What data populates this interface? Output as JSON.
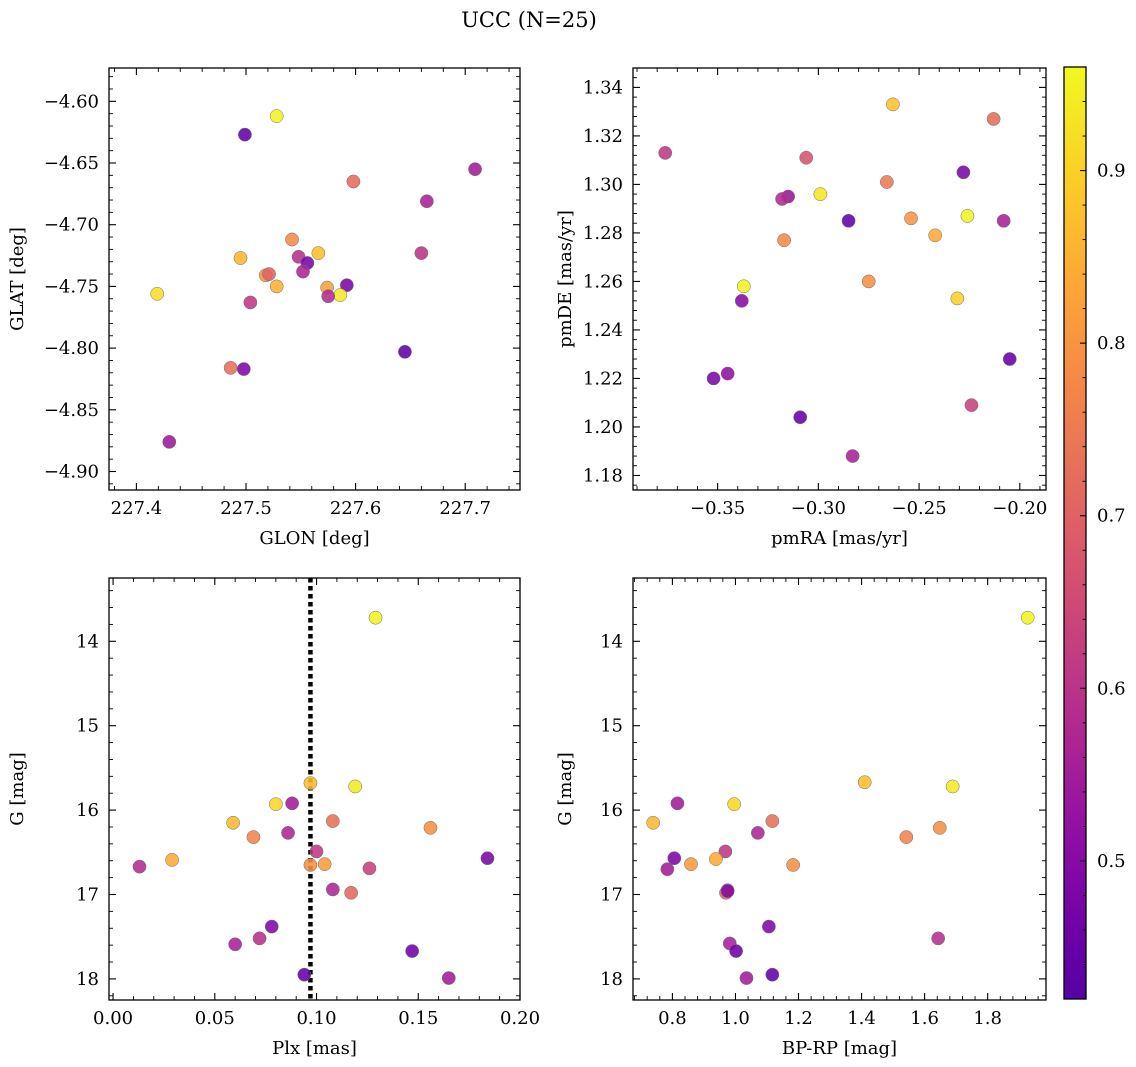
{
  "figure": {
    "title": "UCC (N=25)"
  },
  "colorbar": {
    "range": [
      0.42,
      0.96
    ],
    "ticks": [
      0.5,
      0.6,
      0.7,
      0.8,
      0.9
    ],
    "ticklabels": [
      "0.5",
      "0.6",
      "0.7",
      "0.8",
      "0.9"
    ],
    "colormap": "plasma"
  },
  "chart_data": [
    {
      "type": "scatter",
      "id": "glon-glat",
      "xlabel": "GLON [deg]",
      "ylabel": "GLAT [deg]",
      "xlim": [
        227.375,
        227.75
      ],
      "ylim": [
        -4.915,
        -4.573
      ],
      "y_inverted": false,
      "xticks": [
        227.4,
        227.5,
        227.6,
        227.7
      ],
      "xticklabels": [
        "227.4",
        "227.5",
        "227.6",
        "227.7"
      ],
      "yticks": [
        -4.9,
        -4.85,
        -4.8,
        -4.75,
        -4.7,
        -4.65,
        -4.6
      ],
      "yticklabels": [
        "−4.90",
        "−4.85",
        "−4.80",
        "−4.75",
        "−4.70",
        "−4.65",
        "−4.60"
      ],
      "points": [
        {
          "x": 227.499,
          "y": -4.627,
          "c": 0.44
        },
        {
          "x": 227.528,
          "y": -4.612,
          "c": 0.95
        },
        {
          "x": 227.709,
          "y": -4.655,
          "c": 0.55
        },
        {
          "x": 227.598,
          "y": -4.665,
          "c": 0.72
        },
        {
          "x": 227.665,
          "y": -4.681,
          "c": 0.56
        },
        {
          "x": 227.542,
          "y": -4.712,
          "c": 0.78
        },
        {
          "x": 227.566,
          "y": -4.723,
          "c": 0.87
        },
        {
          "x": 227.66,
          "y": -4.723,
          "c": 0.6
        },
        {
          "x": 227.495,
          "y": -4.727,
          "c": 0.86
        },
        {
          "x": 227.548,
          "y": -4.726,
          "c": 0.59
        },
        {
          "x": 227.556,
          "y": -4.731,
          "c": 0.47
        },
        {
          "x": 227.518,
          "y": -4.741,
          "c": 0.8
        },
        {
          "x": 227.521,
          "y": -4.74,
          "c": 0.7
        },
        {
          "x": 227.552,
          "y": -4.738,
          "c": 0.57
        },
        {
          "x": 227.592,
          "y": -4.749,
          "c": 0.48
        },
        {
          "x": 227.528,
          "y": -4.75,
          "c": 0.85
        },
        {
          "x": 227.419,
          "y": -4.756,
          "c": 0.92
        },
        {
          "x": 227.574,
          "y": -4.751,
          "c": 0.82
        },
        {
          "x": 227.586,
          "y": -4.757,
          "c": 0.94
        },
        {
          "x": 227.575,
          "y": -4.758,
          "c": 0.58
        },
        {
          "x": 227.504,
          "y": -4.763,
          "c": 0.61
        },
        {
          "x": 227.645,
          "y": -4.803,
          "c": 0.44
        },
        {
          "x": 227.486,
          "y": -4.816,
          "c": 0.73
        },
        {
          "x": 227.498,
          "y": -4.817,
          "c": 0.49
        },
        {
          "x": 227.43,
          "y": -4.876,
          "c": 0.54
        }
      ]
    },
    {
      "type": "scatter",
      "id": "pmra-pmde",
      "xlabel": "pmRA [mas/yr]",
      "ylabel": "pmDE [mas/yr]",
      "xlim": [
        -0.392,
        -0.187
      ],
      "ylim": [
        1.174,
        1.348
      ],
      "y_inverted": false,
      "xticks": [
        -0.35,
        -0.3,
        -0.25,
        -0.2
      ],
      "xticklabels": [
        "−0.35",
        "−0.30",
        "−0.25",
        "−0.20"
      ],
      "yticks": [
        1.18,
        1.2,
        1.22,
        1.24,
        1.26,
        1.28,
        1.3,
        1.32,
        1.34
      ],
      "yticklabels": [
        "1.18",
        "1.20",
        "1.22",
        "1.24",
        "1.26",
        "1.28",
        "1.30",
        "1.32",
        "1.34"
      ],
      "points": [
        {
          "x": -0.376,
          "y": 1.313,
          "c": 0.61
        },
        {
          "x": -0.263,
          "y": 1.333,
          "c": 0.88
        },
        {
          "x": -0.213,
          "y": 1.327,
          "c": 0.72
        },
        {
          "x": -0.306,
          "y": 1.311,
          "c": 0.67
        },
        {
          "x": -0.228,
          "y": 1.305,
          "c": 0.48
        },
        {
          "x": -0.266,
          "y": 1.301,
          "c": 0.75
        },
        {
          "x": -0.315,
          "y": 1.295,
          "c": 0.53
        },
        {
          "x": -0.318,
          "y": 1.294,
          "c": 0.58
        },
        {
          "x": -0.299,
          "y": 1.296,
          "c": 0.93
        },
        {
          "x": -0.226,
          "y": 1.287,
          "c": 0.95
        },
        {
          "x": -0.254,
          "y": 1.286,
          "c": 0.8
        },
        {
          "x": -0.285,
          "y": 1.285,
          "c": 0.44
        },
        {
          "x": -0.208,
          "y": 1.285,
          "c": 0.56
        },
        {
          "x": -0.242,
          "y": 1.279,
          "c": 0.84
        },
        {
          "x": -0.317,
          "y": 1.277,
          "c": 0.78
        },
        {
          "x": -0.275,
          "y": 1.26,
          "c": 0.79
        },
        {
          "x": -0.337,
          "y": 1.258,
          "c": 0.95
        },
        {
          "x": -0.231,
          "y": 1.253,
          "c": 0.9
        },
        {
          "x": -0.338,
          "y": 1.252,
          "c": 0.5
        },
        {
          "x": -0.345,
          "y": 1.222,
          "c": 0.52
        },
        {
          "x": -0.352,
          "y": 1.22,
          "c": 0.48
        },
        {
          "x": -0.205,
          "y": 1.228,
          "c": 0.45
        },
        {
          "x": -0.224,
          "y": 1.209,
          "c": 0.63
        },
        {
          "x": -0.309,
          "y": 1.204,
          "c": 0.45
        },
        {
          "x": -0.283,
          "y": 1.188,
          "c": 0.56
        }
      ]
    },
    {
      "type": "scatter",
      "id": "plx-g",
      "xlabel": "Plx [mas]",
      "ylabel": "G [mag]",
      "xlim": [
        -0.002,
        0.2
      ],
      "ylim": [
        18.25,
        13.25
      ],
      "y_inverted": true,
      "vline": {
        "x": 0.097,
        "style": "dotted"
      },
      "xticks": [
        0.0,
        0.05,
        0.1,
        0.15,
        0.2
      ],
      "xticklabels": [
        "0.00",
        "0.05",
        "0.10",
        "0.15",
        "0.20"
      ],
      "yticks": [
        14,
        15,
        16,
        17,
        18
      ],
      "yticklabels": [
        "14",
        "15",
        "16",
        "17",
        "18"
      ],
      "points": [
        {
          "x": 0.129,
          "y": 13.72,
          "c": 0.95
        },
        {
          "x": 0.097,
          "y": 15.68,
          "c": 0.87
        },
        {
          "x": 0.119,
          "y": 15.72,
          "c": 0.94
        },
        {
          "x": 0.08,
          "y": 15.93,
          "c": 0.91
        },
        {
          "x": 0.088,
          "y": 15.92,
          "c": 0.55
        },
        {
          "x": 0.059,
          "y": 16.15,
          "c": 0.86
        },
        {
          "x": 0.108,
          "y": 16.13,
          "c": 0.73
        },
        {
          "x": 0.156,
          "y": 16.21,
          "c": 0.79
        },
        {
          "x": 0.086,
          "y": 16.27,
          "c": 0.57
        },
        {
          "x": 0.069,
          "y": 16.32,
          "c": 0.77
        },
        {
          "x": 0.1,
          "y": 16.49,
          "c": 0.61
        },
        {
          "x": 0.184,
          "y": 16.57,
          "c": 0.48
        },
        {
          "x": 0.029,
          "y": 16.59,
          "c": 0.84
        },
        {
          "x": 0.104,
          "y": 16.64,
          "c": 0.81
        },
        {
          "x": 0.097,
          "y": 16.65,
          "c": 0.79
        },
        {
          "x": 0.013,
          "y": 16.67,
          "c": 0.58
        },
        {
          "x": 0.126,
          "y": 16.69,
          "c": 0.63
        },
        {
          "x": 0.108,
          "y": 16.94,
          "c": 0.57
        },
        {
          "x": 0.117,
          "y": 16.98,
          "c": 0.71
        },
        {
          "x": 0.078,
          "y": 17.38,
          "c": 0.49
        },
        {
          "x": 0.072,
          "y": 17.52,
          "c": 0.59
        },
        {
          "x": 0.06,
          "y": 17.59,
          "c": 0.56
        },
        {
          "x": 0.147,
          "y": 17.67,
          "c": 0.46
        },
        {
          "x": 0.094,
          "y": 17.95,
          "c": 0.44
        },
        {
          "x": 0.165,
          "y": 17.99,
          "c": 0.55
        }
      ]
    },
    {
      "type": "scatter",
      "id": "bprp-g",
      "xlabel": "BP-RP [mag]",
      "ylabel": "G [mag]",
      "xlim": [
        0.675,
        1.985
      ],
      "ylim": [
        18.25,
        13.25
      ],
      "y_inverted": true,
      "xticks": [
        0.8,
        1.0,
        1.2,
        1.4,
        1.6,
        1.8
      ],
      "xticklabels": [
        "0.8",
        "1.0",
        "1.2",
        "1.4",
        "1.6",
        "1.8"
      ],
      "yticks": [
        14,
        15,
        16,
        17,
        18
      ],
      "yticklabels": [
        "14",
        "15",
        "16",
        "17",
        "18"
      ],
      "points": [
        {
          "x": 1.927,
          "y": 13.72,
          "c": 0.95
        },
        {
          "x": 1.41,
          "y": 15.67,
          "c": 0.87
        },
        {
          "x": 1.689,
          "y": 15.72,
          "c": 0.94
        },
        {
          "x": 0.816,
          "y": 15.92,
          "c": 0.55
        },
        {
          "x": 0.996,
          "y": 15.93,
          "c": 0.91
        },
        {
          "x": 0.739,
          "y": 16.15,
          "c": 0.86
        },
        {
          "x": 1.117,
          "y": 16.13,
          "c": 0.73
        },
        {
          "x": 1.648,
          "y": 16.21,
          "c": 0.79
        },
        {
          "x": 1.071,
          "y": 16.27,
          "c": 0.57
        },
        {
          "x": 1.542,
          "y": 16.32,
          "c": 0.77
        },
        {
          "x": 0.968,
          "y": 16.49,
          "c": 0.61
        },
        {
          "x": 0.806,
          "y": 16.57,
          "c": 0.48
        },
        {
          "x": 0.938,
          "y": 16.58,
          "c": 0.84
        },
        {
          "x": 0.859,
          "y": 16.64,
          "c": 0.81
        },
        {
          "x": 1.183,
          "y": 16.65,
          "c": 0.79
        },
        {
          "x": 0.784,
          "y": 16.7,
          "c": 0.55
        },
        {
          "x": 0.975,
          "y": 16.95,
          "c": 0.57
        },
        {
          "x": 0.97,
          "y": 16.98,
          "c": 0.71
        },
        {
          "x": 1.106,
          "y": 17.38,
          "c": 0.49
        },
        {
          "x": 1.643,
          "y": 17.52,
          "c": 0.59
        },
        {
          "x": 0.982,
          "y": 17.58,
          "c": 0.56
        },
        {
          "x": 1.002,
          "y": 17.67,
          "c": 0.46
        },
        {
          "x": 1.117,
          "y": 17.95,
          "c": 0.44
        },
        {
          "x": 1.035,
          "y": 17.99,
          "c": 0.55
        },
        {
          "x": 0.975,
          "y": 16.96,
          "c": 0.5
        }
      ]
    }
  ]
}
